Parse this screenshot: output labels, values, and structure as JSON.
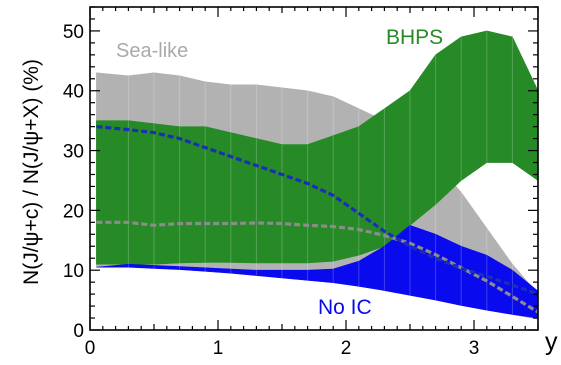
{
  "chart_data": {
    "type": "area",
    "ylabel": "N(J/ψ+c) / N(J/ψ+X)  (%)",
    "xlabel": "y",
    "xlim": [
      0,
      3.5
    ],
    "ylim": [
      0,
      54
    ],
    "x_ticks": [
      0,
      1,
      2,
      3
    ],
    "y_ticks": [
      0,
      10,
      20,
      30,
      40,
      50
    ],
    "grid": false,
    "labels": {
      "sea_like": "Sea-like",
      "bhps": "BHPS",
      "no_ic": "No IC"
    },
    "colors": {
      "sea_like": "#b2b2b2",
      "bhps": "#268a26",
      "no_ic": "#0a0aee",
      "sea_like_central": "#8c8c8c",
      "bhps_central": "#1a2fb8"
    },
    "series": [
      {
        "name": "Sea-like",
        "x": [
          0.05,
          0.3,
          0.5,
          0.7,
          0.9,
          1.1,
          1.3,
          1.5,
          1.7,
          1.9,
          2.1,
          2.3,
          2.5,
          2.7,
          2.9,
          3.1,
          3.3,
          3.5
        ],
        "upper": [
          43,
          42.5,
          43,
          42.5,
          41.5,
          41,
          41,
          40.5,
          40,
          39,
          37,
          35,
          32,
          28,
          23,
          17,
          11,
          6
        ],
        "lower": [
          10.5,
          10.5,
          10.5,
          10.5,
          10.2,
          10,
          9.7,
          9.3,
          8.9,
          8.5,
          8,
          7.3,
          6.6,
          5.6,
          4.6,
          3.6,
          2.6,
          1.8
        ],
        "central": [
          18,
          18,
          17.5,
          17.8,
          17.8,
          17.8,
          17.9,
          17.8,
          17.5,
          17.3,
          16.8,
          15.8,
          14.5,
          12.6,
          10.4,
          8.2,
          5.6,
          3
        ]
      },
      {
        "name": "BHPS",
        "x": [
          0.05,
          0.3,
          0.5,
          0.7,
          0.9,
          1.1,
          1.3,
          1.5,
          1.7,
          1.9,
          2.1,
          2.3,
          2.5,
          2.7,
          2.9,
          3.1,
          3.3,
          3.5
        ],
        "upper": [
          35,
          35,
          34.5,
          34,
          34,
          33,
          32,
          31,
          31,
          32.5,
          34,
          37,
          40,
          46,
          49,
          50,
          49,
          40
        ],
        "lower": [
          11,
          11,
          11,
          11.2,
          11.3,
          11.3,
          11.2,
          11.2,
          11.2,
          11.5,
          12.5,
          14,
          17.5,
          21,
          25,
          28,
          28,
          25
        ],
        "central": [
          34,
          33.5,
          33,
          32,
          30.5,
          29,
          27.5,
          26,
          24.5,
          22.5,
          19.5,
          16.5,
          14,
          12,
          10.3,
          9,
          7.5,
          6
        ]
      },
      {
        "name": "No IC",
        "x": [
          0.05,
          0.3,
          0.5,
          0.7,
          0.9,
          1.1,
          1.3,
          1.5,
          1.7,
          1.9,
          2.1,
          2.3,
          2.5,
          2.7,
          2.9,
          3.1,
          3.3,
          3.5
        ],
        "upper": [
          10.5,
          11,
          10.8,
          10.6,
          10.4,
          10.2,
          10,
          10,
          10,
          10.2,
          11.5,
          14,
          17.5,
          16,
          14,
          12.5,
          10,
          6.5
        ],
        "lower": [
          10.5,
          10.5,
          10.3,
          10.1,
          9.8,
          9.5,
          9.1,
          8.7,
          8.3,
          7.9,
          7.3,
          6.6,
          5.8,
          5,
          4.1,
          3.3,
          2.6,
          2
        ]
      }
    ]
  }
}
